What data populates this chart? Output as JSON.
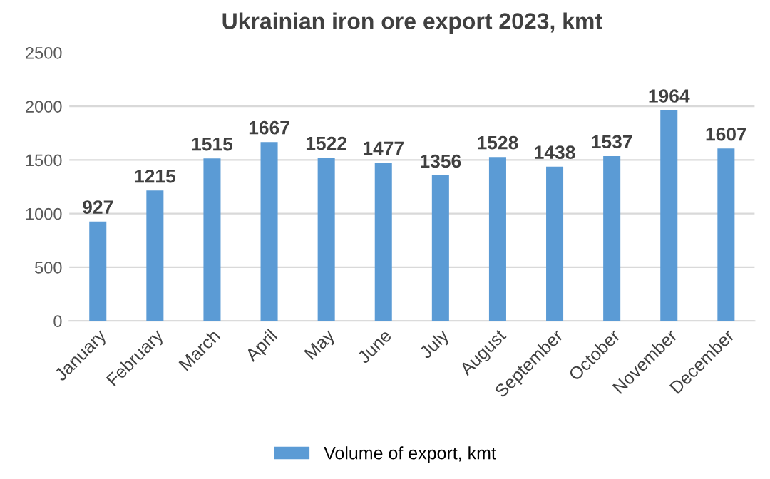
{
  "chart_data": {
    "type": "bar",
    "title": "Ukrainian iron ore export 2023, kmt",
    "categories": [
      "January",
      "February",
      "March",
      "April",
      "May",
      "June",
      "July",
      "August",
      "September",
      "October",
      "November",
      "December"
    ],
    "series": [
      {
        "name": "Volume of export, kmt",
        "color": "#5b9bd5",
        "values": [
          927,
          1215,
          1515,
          1667,
          1522,
          1477,
          1356,
          1528,
          1438,
          1537,
          1964,
          1607
        ]
      }
    ],
    "ylim": [
      0,
      2500
    ],
    "yticks": [
      0,
      500,
      1000,
      1500,
      2000,
      2500
    ],
    "grid": "y",
    "legend": "bottom",
    "data_labels": true
  }
}
